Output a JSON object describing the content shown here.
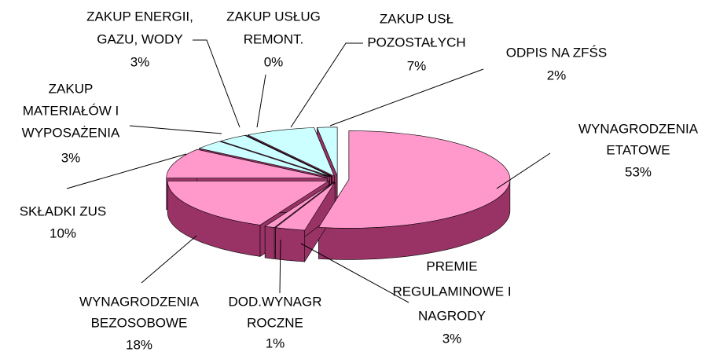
{
  "chart_data": {
    "type": "pie",
    "categories": [
      [
        "WYNAGRODZENIA",
        "ETATOWE"
      ],
      [
        "PREMIE",
        "REGULAMINOWE I",
        "NAGRODY"
      ],
      [
        "DOD.WYNAGR",
        "ROCZNE"
      ],
      [
        "WYNAGRODZENIA",
        "BEZOSOBOWE"
      ],
      [
        "SKŁADKI ZUS"
      ],
      [
        "ZAKUP",
        "MATERIAŁÓW  I",
        "WYPOSAŻENIA"
      ],
      [
        "ZAKUP ENERGII,",
        "GAZU, WODY"
      ],
      [
        "ZAKUP USŁUG",
        "REMONT."
      ],
      [
        "ZAKUP USŁ",
        "POZOSTAŁYCH"
      ],
      [
        "ODPIS NA ZFŚS"
      ]
    ],
    "values": [
      53,
      3,
      1,
      18,
      10,
      3,
      3,
      0,
      7,
      2
    ],
    "value_labels": [
      "53%",
      "3%",
      "1%",
      "18%",
      "10%",
      "3%",
      "3%",
      "0%",
      "7%",
      "2%"
    ],
    "colors": [
      "#ff99cc",
      "#ff99cc",
      "#ff99cc",
      "#ff99cc",
      "#ff99cc",
      "#ccffff",
      "#ccffff",
      "#ccffff",
      "#ccffff",
      "#ccffff"
    ],
    "side_color": "#993366"
  }
}
